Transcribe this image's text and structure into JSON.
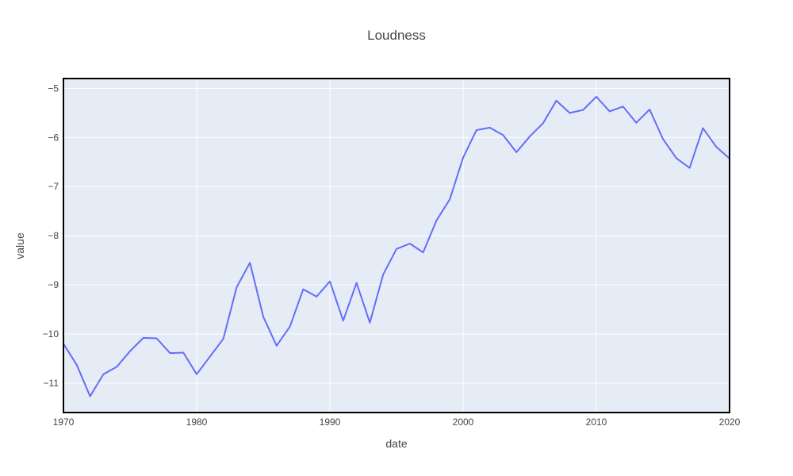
{
  "chart_data": {
    "type": "line",
    "title": "Loudness",
    "xlabel": "date",
    "ylabel": "value",
    "xlim": [
      1970,
      2020
    ],
    "ylim": [
      -11.6,
      -4.8
    ],
    "x_ticks": [
      1970,
      1980,
      1990,
      2000,
      2010,
      2020
    ],
    "x_tick_labels": [
      "1970",
      "1980",
      "1990",
      "2000",
      "2010",
      "2020"
    ],
    "y_ticks": [
      -11,
      -10,
      -9,
      -8,
      -7,
      -6,
      -5
    ],
    "y_tick_labels": [
      "−11",
      "−10",
      "−9",
      "−8",
      "−7",
      "−6",
      "−5"
    ],
    "grid": true,
    "colors": {
      "line": "#636efa",
      "plot_bg": "#e5ecf6",
      "grid": "#ffffff",
      "frame": "#000000"
    },
    "series": [
      {
        "x": [
          1970,
          1971,
          1972,
          1973,
          1974,
          1975,
          1976,
          1977,
          1978,
          1979,
          1980,
          1981,
          1982,
          1983,
          1984,
          1985,
          1986,
          1987,
          1988,
          1989,
          1990,
          1991,
          1992,
          1993,
          1994,
          1995,
          1996,
          1997,
          1998,
          1999,
          2000,
          2001,
          2002,
          2003,
          2004,
          2005,
          2006,
          2007,
          2008,
          2009,
          2010,
          2011,
          2012,
          2013,
          2014,
          2015,
          2016,
          2017,
          2018,
          2019,
          2020
        ],
        "values": [
          -10.2,
          -10.63,
          -11.27,
          -10.82,
          -10.67,
          -10.35,
          -10.08,
          -10.09,
          -10.39,
          -10.38,
          -10.82,
          -10.46,
          -10.1,
          -9.05,
          -8.55,
          -9.65,
          -10.24,
          -9.85,
          -9.09,
          -9.24,
          -8.93,
          -9.73,
          -8.96,
          -9.77,
          -8.79,
          -8.27,
          -8.16,
          -8.34,
          -7.69,
          -7.26,
          -6.41,
          -5.85,
          -5.8,
          -5.95,
          -6.3,
          -5.98,
          -5.71,
          -5.25,
          -5.5,
          -5.44,
          -5.17,
          -5.47,
          -5.37,
          -5.7,
          -5.43,
          -6.03,
          -6.42,
          -6.62,
          -5.81,
          -6.19,
          -6.43
        ]
      }
    ]
  }
}
